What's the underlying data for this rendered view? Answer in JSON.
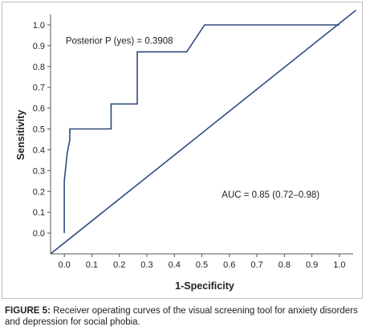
{
  "chart_data": {
    "type": "line",
    "title": "",
    "xlabel": "1-Specificity",
    "ylabel": "Sensitivity",
    "xlim": [
      -0.05,
      1.05
    ],
    "ylim": [
      -0.1,
      1.05
    ],
    "x_ticks": [
      "0.0",
      "0.1",
      "0.2",
      "0.3",
      "0.4",
      "0.5",
      "0.6",
      "0.7",
      "0.8",
      "0.9",
      "1.0"
    ],
    "y_ticks": [
      "0.0",
      "0.1",
      "0.2",
      "0.3",
      "0.4",
      "0.5",
      "0.6",
      "0.7",
      "0.8",
      "0.9",
      "1.0"
    ],
    "grid": false,
    "legend": "none",
    "series": [
      {
        "kind": "roc",
        "x": [
          0.0,
          0.0,
          0.01,
          0.02,
          0.02,
          0.17,
          0.17,
          0.265,
          0.265,
          0.445,
          0.51,
          1.0
        ],
        "y": [
          0.0,
          0.25,
          0.38,
          0.45,
          0.5,
          0.5,
          0.62,
          0.62,
          0.87,
          0.87,
          1.0,
          1.0
        ]
      },
      {
        "kind": "reference",
        "x": [
          -0.05,
          1.06
        ],
        "y": [
          -0.1,
          1.07
        ]
      }
    ],
    "annotations": [
      {
        "text": "Posterior P (yes) = 0.3908",
        "x": 0.2,
        "y": 0.91
      },
      {
        "text": "AUC = 0.85 (0.72–0.98)",
        "x": 0.75,
        "y": 0.17
      }
    ],
    "colors": {
      "curve": "#2e4a7f",
      "axis": "#555555",
      "text": "#222222"
    }
  },
  "caption": {
    "label": "FIGURE 5:",
    "text": " Receiver operating curves of the visual screening tool for anxiety disorders and depression for social phobia."
  }
}
